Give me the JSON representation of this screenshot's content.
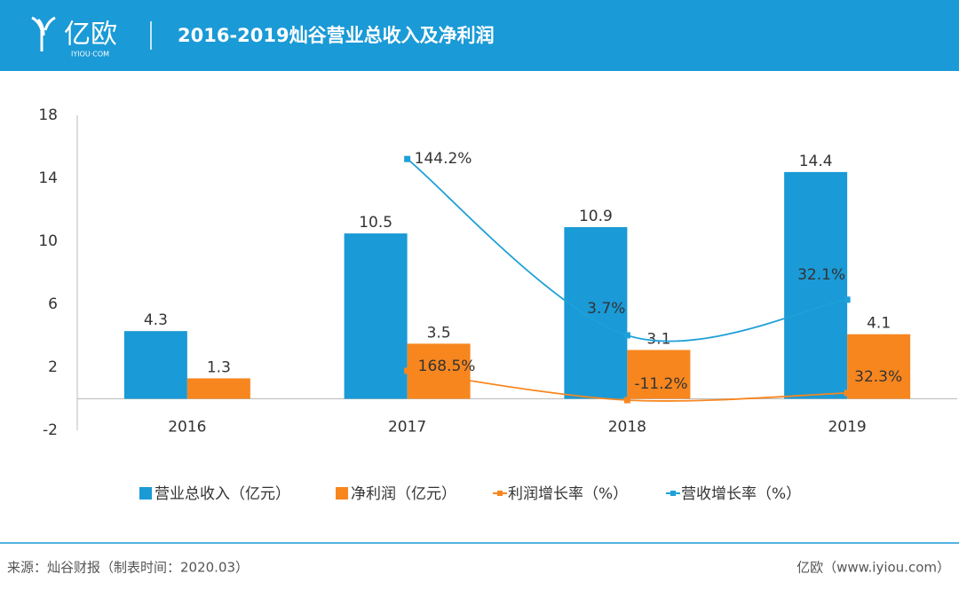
{
  "header": {
    "logo": "亿欧",
    "logo_sub": "IYIOU·COM"
  },
  "chart_data": {
    "type": "bar",
    "title": "2016-2019灿谷营业总收入及净利润",
    "categories": [
      "2016",
      "2017",
      "2018",
      "2019"
    ],
    "ylim": [
      -2,
      18
    ],
    "yticks": [
      -2,
      2,
      6,
      10,
      14,
      18
    ],
    "series": [
      {
        "name": "营业总收入（亿元）",
        "type": "bar",
        "color": "#1a9ad6",
        "values": [
          4.3,
          10.5,
          10.9,
          14.4
        ]
      },
      {
        "name": "净利润（亿元）",
        "type": "bar",
        "color": "#f7861f",
        "values": [
          1.3,
          3.5,
          3.1,
          4.1
        ]
      },
      {
        "name": "利润增长率（%）",
        "type": "line",
        "color": "#f7861f",
        "ylim": [
          -196,
          1733
        ],
        "values": [
          null,
          168.5,
          -11.2,
          32.3
        ],
        "value_labels": [
          null,
          "168.5%",
          "-11.2%",
          "32.3%"
        ]
      },
      {
        "name": "营收增长率（%）",
        "type": "line",
        "color": "#1ea0d8",
        "ylim": [
          -72,
          179
        ],
        "values": [
          null,
          144.2,
          3.7,
          32.1
        ],
        "value_labels": [
          null,
          "144.2%",
          "3.7%",
          "32.1%"
        ]
      }
    ]
  },
  "footer": {
    "source": "来源：灿谷财报（制表时间：2020.03）",
    "credit": "亿欧（www.iyiou.com）"
  }
}
